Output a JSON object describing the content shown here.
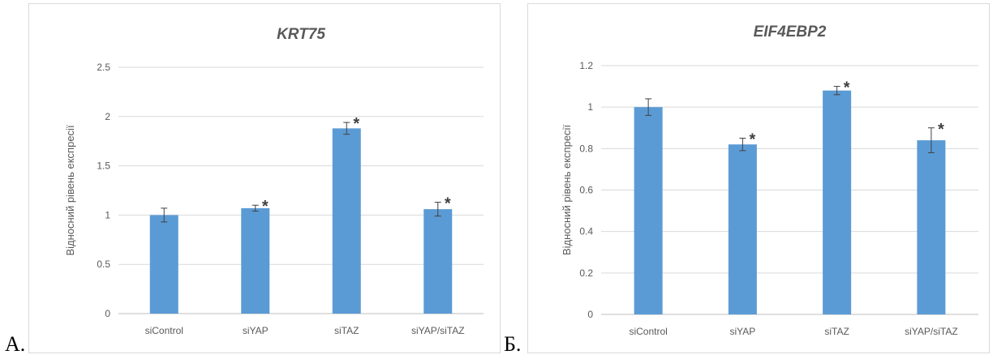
{
  "panel_labels": [
    "А.",
    "Б."
  ],
  "chart_data": [
    {
      "type": "bar",
      "title": "KRT75",
      "xlabel": "",
      "ylabel": "Відносний рівень експресії",
      "categories": [
        "siControl",
        "siYAP",
        "siTAZ",
        "siYAP/siTAZ"
      ],
      "values": [
        1.0,
        1.07,
        1.88,
        1.06
      ],
      "errors": [
        0.07,
        0.03,
        0.06,
        0.07
      ],
      "significance": [
        "",
        "*",
        "*",
        "*"
      ],
      "ylim": [
        0,
        2.5
      ],
      "yticks": [
        "0",
        "0.5",
        "1",
        "1.5",
        "2",
        "2.5"
      ],
      "ytick_values": [
        0,
        0.5,
        1,
        1.5,
        2,
        2.5
      ],
      "grid": true,
      "bar_color": "#5b9bd5"
    },
    {
      "type": "bar",
      "title": "EIF4EBP2",
      "xlabel": "",
      "ylabel": "Відносний рівень експресії",
      "categories": [
        "siControl",
        "siYAP",
        "siTAZ",
        "siYAP/siTAZ"
      ],
      "values": [
        1.0,
        0.82,
        1.08,
        0.84
      ],
      "errors": [
        0.04,
        0.03,
        0.02,
        0.06
      ],
      "significance": [
        "",
        "*",
        "*",
        "*"
      ],
      "ylim": [
        0,
        1.2
      ],
      "yticks": [
        "0",
        "0.2",
        "0.4",
        "0.6",
        "0.8",
        "1",
        "1.2"
      ],
      "ytick_values": [
        0,
        0.2,
        0.4,
        0.6,
        0.8,
        1.0,
        1.2
      ],
      "grid": true,
      "bar_color": "#5b9bd5"
    }
  ]
}
